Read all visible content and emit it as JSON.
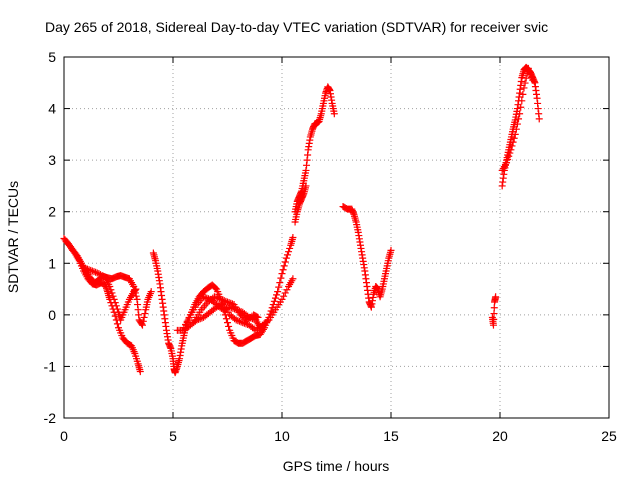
{
  "chart_data": {
    "type": "scatter",
    "title": "Day 265 of 2018, Sidereal Day-to-day VTEC variation (SDTVAR) for receiver svic",
    "xlabel": "GPS time / hours",
    "ylabel": "SDTVAR / TECUs",
    "xlim": [
      0,
      25
    ],
    "ylim": [
      -2,
      5
    ],
    "xticks": [
      "0",
      "5",
      "10",
      "15",
      "20",
      "25"
    ],
    "yticks": [
      "-2",
      "-1",
      "0",
      "1",
      "2",
      "3",
      "4",
      "5"
    ],
    "grid": true,
    "marker": "+",
    "series": [
      {
        "name": "SDTVAR",
        "color": "#ff0000",
        "segments": [
          [
            [
              0.0,
              1.48
            ],
            [
              0.2,
              1.38
            ],
            [
              0.4,
              1.25
            ],
            [
              0.6,
              1.15
            ],
            [
              0.8,
              1.0
            ],
            [
              1.0,
              0.85
            ],
            [
              1.2,
              0.72
            ],
            [
              1.4,
              0.62
            ],
            [
              1.6,
              0.68
            ],
            [
              1.8,
              0.75
            ],
            [
              2.0,
              0.72
            ],
            [
              2.2,
              0.7
            ],
            [
              2.4,
              0.74
            ],
            [
              2.6,
              0.76
            ],
            [
              2.8,
              0.73
            ],
            [
              3.0,
              0.7
            ],
            [
              3.2,
              0.55
            ],
            [
              3.35,
              0.3
            ],
            [
              3.45,
              -0.1
            ],
            [
              3.6,
              -0.2
            ],
            [
              3.75,
              0.1
            ],
            [
              3.85,
              0.3
            ],
            [
              4.0,
              0.45
            ]
          ],
          [
            [
              0.1,
              1.42
            ],
            [
              0.3,
              1.32
            ],
            [
              0.5,
              1.2
            ],
            [
              0.7,
              1.05
            ],
            [
              0.9,
              0.85
            ],
            [
              1.1,
              0.7
            ],
            [
              1.3,
              0.6
            ],
            [
              1.5,
              0.58
            ],
            [
              1.7,
              0.62
            ],
            [
              1.9,
              0.58
            ],
            [
              2.0,
              0.45
            ],
            [
              2.1,
              0.3
            ],
            [
              2.3,
              0.05
            ],
            [
              2.5,
              -0.25
            ],
            [
              2.7,
              -0.45
            ],
            [
              2.9,
              -0.55
            ],
            [
              3.1,
              -0.6
            ],
            [
              3.25,
              -0.75
            ],
            [
              3.4,
              -0.95
            ],
            [
              3.5,
              -1.1
            ]
          ],
          [
            [
              1.0,
              0.9
            ],
            [
              1.3,
              0.85
            ],
            [
              1.6,
              0.8
            ],
            [
              1.9,
              0.72
            ],
            [
              2.1,
              0.55
            ],
            [
              2.3,
              0.3
            ],
            [
              2.5,
              0.05
            ],
            [
              2.6,
              -0.1
            ],
            [
              2.8,
              0.1
            ],
            [
              3.0,
              0.3
            ],
            [
              3.2,
              0.45
            ],
            [
              3.3,
              0.5
            ]
          ],
          [
            [
              4.1,
              1.2
            ],
            [
              4.2,
              1.05
            ],
            [
              4.3,
              0.85
            ],
            [
              4.4,
              0.6
            ],
            [
              4.5,
              0.3
            ],
            [
              4.6,
              0.0
            ],
            [
              4.7,
              -0.3
            ],
            [
              4.8,
              -0.55
            ],
            [
              4.9,
              -0.65
            ],
            [
              5.0,
              -0.85
            ],
            [
              5.05,
              -1.05
            ],
            [
              5.1,
              -1.12
            ],
            [
              5.2,
              -1.0
            ],
            [
              5.3,
              -0.85
            ],
            [
              5.4,
              -0.6
            ],
            [
              5.5,
              -0.4
            ],
            [
              5.6,
              -0.2
            ],
            [
              5.8,
              0.0
            ],
            [
              6.0,
              0.2
            ],
            [
              6.2,
              0.35
            ],
            [
              6.4,
              0.45
            ],
            [
              6.6,
              0.52
            ],
            [
              6.8,
              0.58
            ],
            [
              7.0,
              0.5
            ],
            [
              7.2,
              0.3
            ],
            [
              7.4,
              0.0
            ],
            [
              7.6,
              -0.3
            ],
            [
              7.8,
              -0.5
            ],
            [
              8.0,
              -0.55
            ],
            [
              8.2,
              -0.55
            ],
            [
              8.4,
              -0.5
            ],
            [
              8.6,
              -0.45
            ],
            [
              8.8,
              -0.4
            ],
            [
              9.0,
              -0.38
            ],
            [
              9.2,
              -0.25
            ],
            [
              9.4,
              -0.05
            ],
            [
              9.6,
              0.2
            ],
            [
              9.8,
              0.45
            ],
            [
              10.0,
              0.8
            ],
            [
              10.2,
              1.1
            ],
            [
              10.4,
              1.35
            ],
            [
              10.5,
              1.5
            ]
          ],
          [
            [
              5.2,
              -0.3
            ],
            [
              5.5,
              -0.3
            ],
            [
              5.8,
              -0.2
            ],
            [
              6.1,
              -0.1
            ],
            [
              6.4,
              -0.05
            ],
            [
              6.7,
              0.05
            ],
            [
              7.0,
              0.15
            ],
            [
              7.3,
              0.2
            ],
            [
              7.6,
              0.0
            ],
            [
              7.9,
              -0.1
            ],
            [
              8.2,
              -0.15
            ],
            [
              8.5,
              -0.2
            ],
            [
              8.8,
              -0.3
            ],
            [
              9.1,
              -0.2
            ],
            [
              9.4,
              -0.1
            ],
            [
              9.7,
              0.1
            ],
            [
              10.0,
              0.3
            ],
            [
              10.3,
              0.55
            ],
            [
              10.5,
              0.7
            ]
          ],
          [
            [
              5.5,
              -0.25
            ],
            [
              5.8,
              0.0
            ],
            [
              6.1,
              0.2
            ],
            [
              6.4,
              0.35
            ],
            [
              6.7,
              0.3
            ],
            [
              7.0,
              0.2
            ],
            [
              7.3,
              0.1
            ],
            [
              7.6,
              0.15
            ],
            [
              7.9,
              0.1
            ],
            [
              8.2,
              0.05
            ],
            [
              8.5,
              -0.05
            ],
            [
              8.8,
              -0.1
            ],
            [
              9.0,
              -0.25
            ],
            [
              9.2,
              -0.2
            ]
          ],
          [
            [
              6.0,
              -0.1
            ],
            [
              6.3,
              0.1
            ],
            [
              6.6,
              0.25
            ],
            [
              6.9,
              0.35
            ],
            [
              7.2,
              0.3
            ],
            [
              7.5,
              0.25
            ],
            [
              7.8,
              0.2
            ],
            [
              8.1,
              0.0
            ],
            [
              8.4,
              -0.1
            ],
            [
              8.7,
              0.0
            ],
            [
              8.9,
              -0.05
            ]
          ],
          [
            [
              10.6,
              2.0
            ],
            [
              10.7,
              2.2
            ],
            [
              10.8,
              2.3
            ],
            [
              10.9,
              2.4
            ],
            [
              11.0,
              2.6
            ],
            [
              11.1,
              2.8
            ],
            [
              11.2,
              3.2
            ],
            [
              11.3,
              3.45
            ],
            [
              11.4,
              3.6
            ],
            [
              11.5,
              3.7
            ],
            [
              11.6,
              3.72
            ],
            [
              11.7,
              3.75
            ],
            [
              11.8,
              3.9
            ],
            [
              11.9,
              4.1
            ],
            [
              12.0,
              4.3
            ],
            [
              12.1,
              4.42
            ],
            [
              12.2,
              4.35
            ],
            [
              12.3,
              4.1
            ],
            [
              12.4,
              3.9
            ]
          ],
          [
            [
              10.6,
              1.8
            ],
            [
              10.7,
              2.0
            ],
            [
              10.8,
              2.15
            ],
            [
              10.9,
              2.25
            ],
            [
              11.0,
              2.35
            ],
            [
              11.1,
              2.5
            ]
          ],
          [
            [
              12.8,
              2.1
            ],
            [
              13.0,
              2.05
            ],
            [
              13.2,
              2.05
            ],
            [
              13.3,
              1.95
            ],
            [
              13.4,
              1.8
            ],
            [
              13.5,
              1.6
            ],
            [
              13.6,
              1.35
            ],
            [
              13.7,
              1.1
            ],
            [
              13.8,
              0.85
            ],
            [
              13.9,
              0.55
            ],
            [
              14.0,
              0.25
            ],
            [
              14.1,
              0.15
            ],
            [
              14.2,
              0.4
            ],
            [
              14.3,
              0.55
            ],
            [
              14.4,
              0.5
            ],
            [
              14.5,
              0.35
            ],
            [
              14.6,
              0.5
            ],
            [
              14.7,
              0.7
            ],
            [
              14.8,
              0.9
            ],
            [
              14.9,
              1.1
            ],
            [
              15.0,
              1.25
            ]
          ],
          [
            [
              19.65,
              -0.05
            ],
            [
              19.7,
              -0.2
            ],
            [
              19.75,
              0.25
            ],
            [
              19.8,
              0.35
            ]
          ],
          [
            [
              20.1,
              2.5
            ],
            [
              20.2,
              2.8
            ],
            [
              20.3,
              3.0
            ],
            [
              20.4,
              3.2
            ],
            [
              20.5,
              3.4
            ],
            [
              20.6,
              3.6
            ],
            [
              20.7,
              3.78
            ],
            [
              20.8,
              4.0
            ],
            [
              20.9,
              4.3
            ],
            [
              21.0,
              4.6
            ],
            [
              21.1,
              4.75
            ],
            [
              21.2,
              4.8
            ],
            [
              21.3,
              4.75
            ],
            [
              21.4,
              4.7
            ],
            [
              21.5,
              4.6
            ],
            [
              21.6,
              4.5
            ],
            [
              21.7,
              4.2
            ],
            [
              21.8,
              3.8
            ]
          ],
          [
            [
              20.1,
              2.8
            ],
            [
              20.3,
              2.95
            ],
            [
              20.5,
              3.2
            ],
            [
              20.7,
              3.5
            ],
            [
              20.9,
              3.9
            ],
            [
              21.1,
              4.4
            ],
            [
              21.3,
              4.78
            ],
            [
              21.5,
              4.55
            ]
          ]
        ]
      }
    ]
  }
}
